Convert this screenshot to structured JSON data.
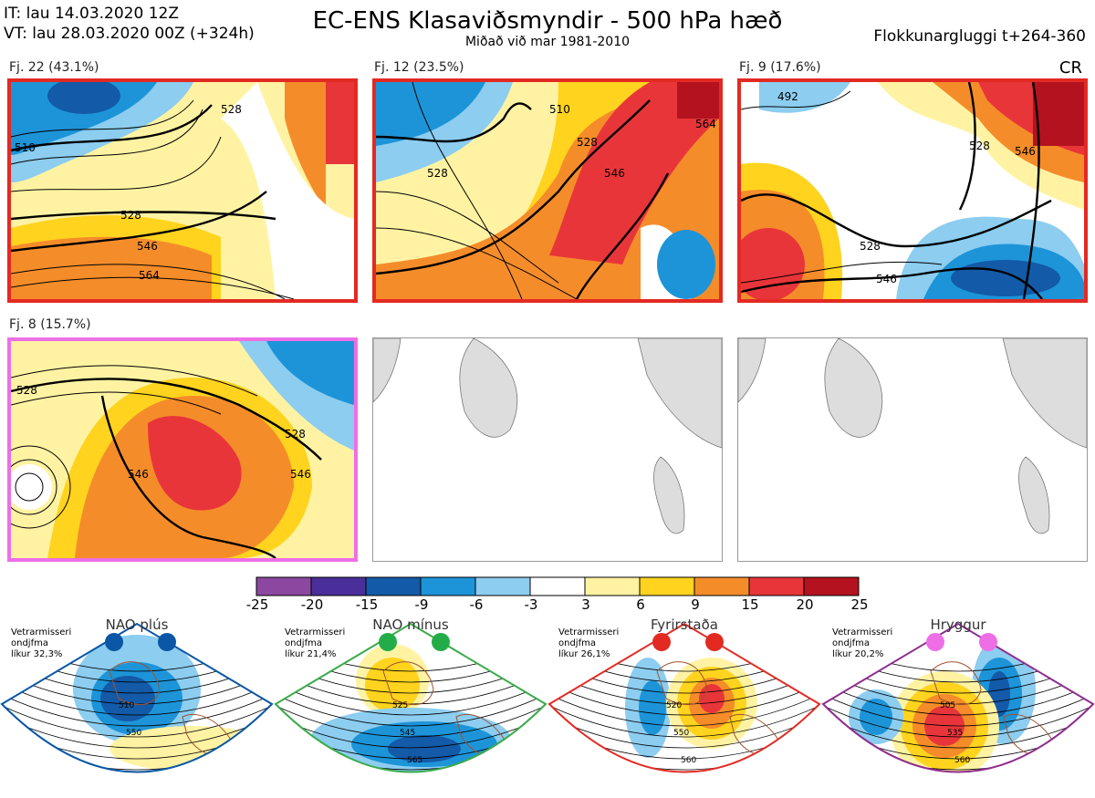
{
  "header": {
    "it": "IT: lau 14.03.2020 12Z",
    "vt": "VT: lau 28.03.2020 00Z  (+324h)",
    "title": "EC-ENS Klasaviðsmyndir - 500 hPa hæð",
    "subtitle": "Miðað við mar 1981-2010",
    "window": "Flokkunargluggi t+264-360",
    "cr": "CR"
  },
  "panels": [
    {
      "label": "Fj. 22 (43.1%)",
      "border": "#e32a22",
      "contours": [
        "510",
        "528",
        "546",
        "564",
        "528"
      ]
    },
    {
      "label": "Fj. 12 (23.5%)",
      "border": "#e32a22",
      "contours": [
        "510",
        "528",
        "546",
        "564",
        "528"
      ]
    },
    {
      "label": "Fj. 9 (17.6%)",
      "border": "#e32a22",
      "contours": [
        "528",
        "546",
        "528",
        "546",
        "492"
      ]
    },
    {
      "label": "Fj. 8 (15.7%)",
      "border": "#ee6ee6",
      "contours": [
        "528",
        "546",
        "546",
        "528"
      ]
    }
  ],
  "colorbar": {
    "ticks": [
      "-25",
      "-20",
      "-15",
      "-9",
      "-6",
      "-3",
      "3",
      "6",
      "9",
      "15",
      "20",
      "25"
    ],
    "colors": [
      "#8c48a0",
      "#4a2f9a",
      "#135aa8",
      "#1d94d8",
      "#8ccdf0",
      "#ffffff",
      "#fff3a3",
      "#ffd31e",
      "#f58c2a",
      "#e8353a",
      "#b4121f"
    ]
  },
  "regimes": [
    {
      "title": "NAO plús",
      "note": [
        "Vetrarmisseri",
        "ondjfma",
        "líkur 32,3%"
      ],
      "color": "#0b57a6",
      "dots": "#0b57a6",
      "contours": [
        "510",
        "550"
      ]
    },
    {
      "title": "NAO mínus",
      "note": [
        "Vetrarmisseri",
        "ondjfma",
        "líkur 21,4%"
      ],
      "color": "#3aab4a",
      "dots": "#23ad48",
      "contours": [
        "525",
        "545",
        "565"
      ]
    },
    {
      "title": "Fyrirstaða",
      "note": [
        "Vetrarmisseri",
        "ondjfma",
        "líkur 26,1%"
      ],
      "color": "#e32a22",
      "dots": "#e32a22",
      "contours": [
        "520",
        "550",
        "560"
      ]
    },
    {
      "title": "Hryggur",
      "note": [
        "Vetrarmisseri",
        "ondjfma",
        "líkur 20,2%"
      ],
      "color": "#8e2d8e",
      "dots": "#ee6ee6",
      "contours": [
        "505",
        "535",
        "560"
      ]
    }
  ]
}
